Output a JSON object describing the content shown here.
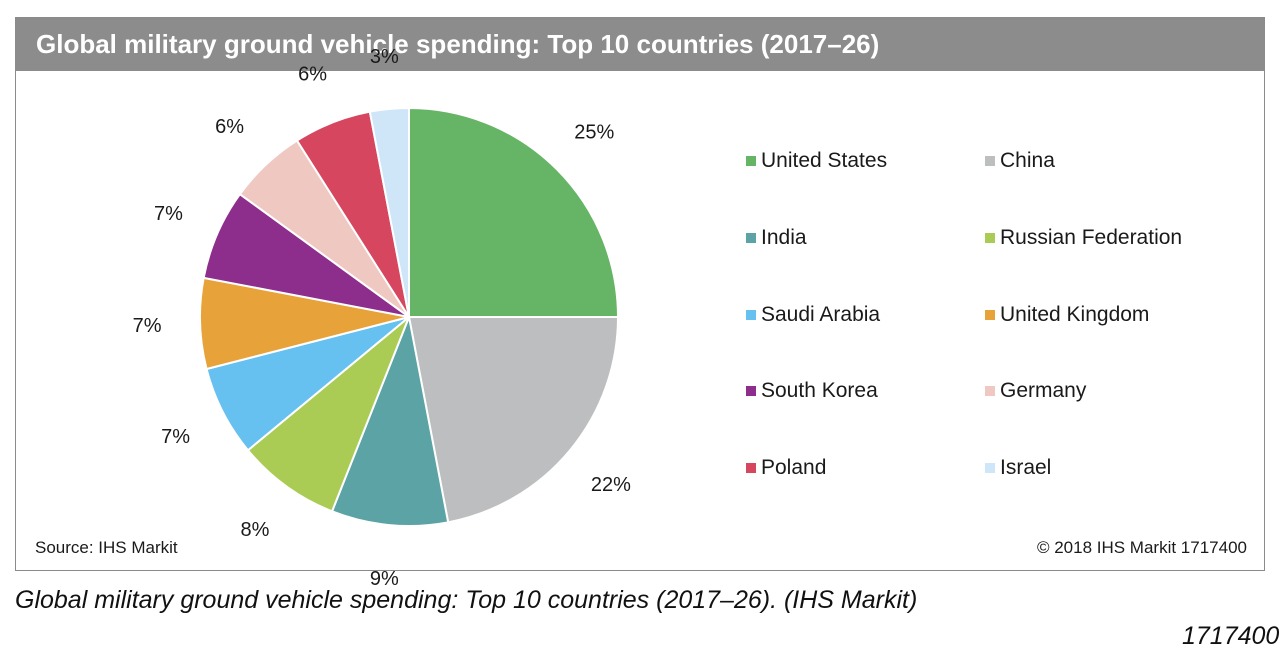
{
  "header": {
    "title": "Global military ground vehicle spending: Top 10 countries (2017–26)"
  },
  "footer": {
    "source": "Source: IHS Markit",
    "copyright": "© 2018 IHS Markit   1717400"
  },
  "caption": {
    "text": "Global military ground vehicle spending: Top 10 countries (2017–26). (IHS Markit)",
    "id": "1717400"
  },
  "chart_data": {
    "type": "pie",
    "title": "Global military ground vehicle spending: Top 10 countries (2017–26)",
    "legend_placement": "right",
    "slices": [
      {
        "label": "United States",
        "value": 25,
        "display": "25%",
        "color": "#66b466"
      },
      {
        "label": "China",
        "value": 22,
        "display": "22%",
        "color": "#bdbebf"
      },
      {
        "label": "India",
        "value": 9,
        "display": "9%",
        "color": "#5ca3a6"
      },
      {
        "label": "Russian Federation",
        "value": 8,
        "display": "8%",
        "color": "#aacc55"
      },
      {
        "label": "Saudi Arabia",
        "value": 7,
        "display": "7%",
        "color": "#66c0f0"
      },
      {
        "label": "United Kingdom",
        "value": 7,
        "display": "7%",
        "color": "#e8a23a"
      },
      {
        "label": "South Korea",
        "value": 7,
        "display": "7%",
        "color": "#8e2e8c"
      },
      {
        "label": "Germany",
        "value": 6,
        "display": "6%",
        "color": "#efc8c2"
      },
      {
        "label": "Poland",
        "value": 6,
        "display": "6%",
        "color": "#d6465e"
      },
      {
        "label": "Israel",
        "value": 3,
        "display": "3%",
        "color": "#cfe6f8"
      }
    ]
  }
}
